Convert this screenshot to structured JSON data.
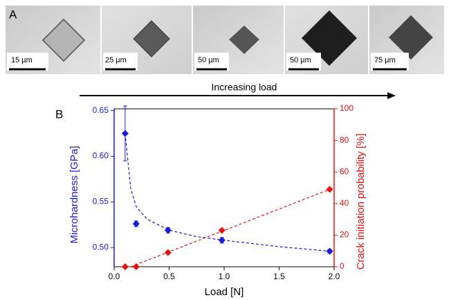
{
  "panel_a": {
    "label": "A",
    "scales": [
      "15 µm",
      "25 µm",
      "50 µm",
      "50 µm",
      "75 µm"
    ],
    "arrow_label": "Increasing load"
  },
  "chart_data": {
    "type": "scatter",
    "label": "B",
    "xlabel": "Load [N]",
    "ylabel": "Microhardness [GPa]",
    "y2label": "Crack initiation probability [%]",
    "xlim": [
      0,
      2
    ],
    "xticks": [
      {
        "value": 0,
        "label": "0.0"
      },
      {
        "value": 0.5,
        "label": "0.5"
      },
      {
        "value": 1,
        "label": "1.0"
      },
      {
        "value": 1.5,
        "label": "1.5"
      },
      {
        "value": 2,
        "label": "2.0"
      }
    ],
    "ylim": [
      0.479,
      0.652
    ],
    "yticks": [
      {
        "value": 0.5,
        "label": "0.50"
      },
      0.55,
      {
        "value": 0.6,
        "label": "0.60"
      },
      0.65
    ],
    "y2lim": [
      0,
      100
    ],
    "y2ticks": [
      0,
      20,
      40,
      60,
      80,
      100
    ],
    "ycolor": "#1a1ad8",
    "y2color": "#e81010",
    "series": [
      {
        "color": "#1a1ad8",
        "marker": "diamond",
        "x": [
          0.1,
          0.2,
          0.49,
          0.98,
          1.96
        ],
        "values": [
          0.625,
          0.526,
          0.519,
          0.508,
          0.496
        ],
        "errors": [
          0.03,
          0.003,
          0.003,
          0.003,
          0.002
        ]
      },
      {
        "color": "#1a1ad8",
        "dash": true,
        "x": [
          0.1,
          0.15,
          0.2,
          0.3,
          0.5,
          0.75,
          1.0,
          1.5,
          1.96
        ],
        "values": [
          0.625,
          0.565,
          0.545,
          0.531,
          0.519,
          0.512,
          0.508,
          0.501,
          0.496
        ]
      },
      {
        "color": "#e81010",
        "marker": "diamond",
        "axis": "y2",
        "x": [
          0.1,
          0.2,
          0.49,
          0.98,
          1.96
        ],
        "values": [
          0,
          0,
          9,
          23,
          49
        ]
      },
      {
        "color": "#e81010",
        "dash": true,
        "axis": "y2",
        "x": [
          0.15,
          1.96
        ],
        "values": [
          0,
          49
        ]
      }
    ]
  }
}
